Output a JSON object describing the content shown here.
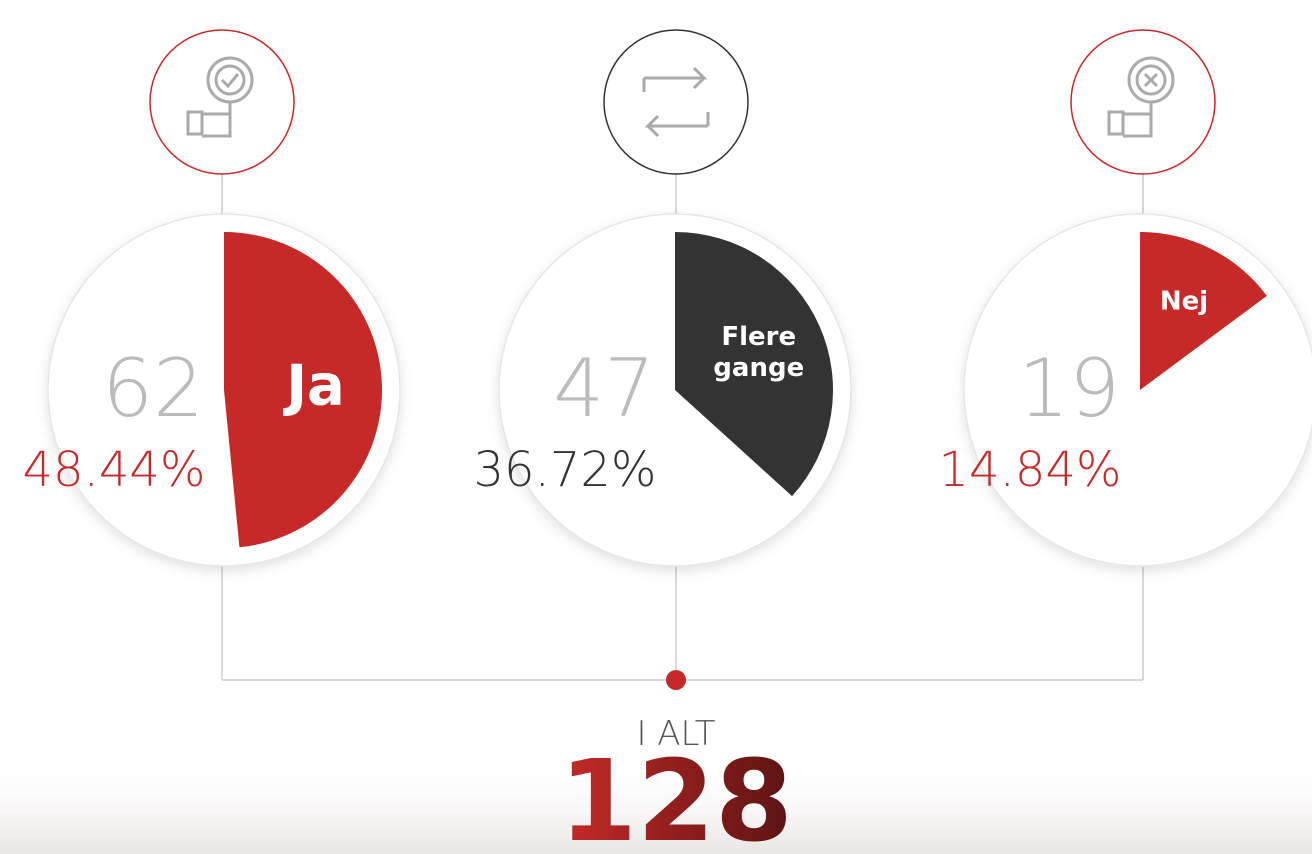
{
  "chart_data": {
    "type": "pie",
    "categories": [
      "Ja",
      "Flere gange",
      "Nej"
    ],
    "values": [
      48.44,
      36.72,
      14.84
    ],
    "value_labels": [
      "48.44%",
      "36.72%",
      "14.84%"
    ],
    "counts": [
      62,
      47,
      19
    ],
    "colors": [
      "#c62a28",
      "#333333",
      "#c62a28"
    ],
    "total_label": "I ALT",
    "total": 128
  }
}
